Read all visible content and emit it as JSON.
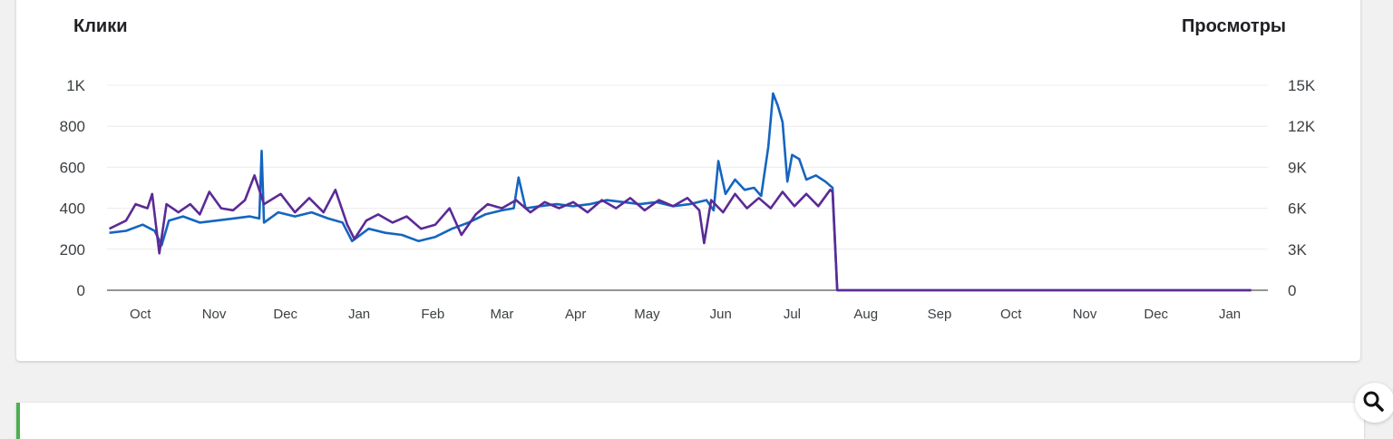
{
  "colors": {
    "clicks": "#1565c0",
    "views": "#5b2a96",
    "grid": "#ececec",
    "axis": "#555555"
  },
  "icons": {
    "search": "search-icon"
  },
  "chart_data": {
    "type": "line",
    "left_axis_title": "Клики",
    "right_axis_title": "Просмотры",
    "ylim_left": [
      0,
      1000
    ],
    "ylim_right": [
      0,
      15000
    ],
    "yticks_left": [
      "0",
      "200",
      "400",
      "600",
      "800",
      "1K"
    ],
    "yticks_right": [
      "0",
      "3K",
      "6K",
      "9K",
      "12K",
      "15K"
    ],
    "x_range": [
      "2023-09-20",
      "2025-01-20"
    ],
    "month_ticks": [
      {
        "label": "Oct",
        "date": "2023-10-04"
      },
      {
        "label": "Nov",
        "date": "2023-11-04"
      },
      {
        "label": "Dec",
        "date": "2023-12-04"
      },
      {
        "label": "Jan",
        "date": "2024-01-04"
      },
      {
        "label": "Feb",
        "date": "2024-02-04"
      },
      {
        "label": "Mar",
        "date": "2024-03-04"
      },
      {
        "label": "Apr",
        "date": "2024-04-04"
      },
      {
        "label": "May",
        "date": "2024-05-04"
      },
      {
        "label": "Jun",
        "date": "2024-06-04"
      },
      {
        "label": "Jul",
        "date": "2024-07-04"
      },
      {
        "label": "Aug",
        "date": "2024-08-04"
      },
      {
        "label": "Sep",
        "date": "2024-09-04"
      },
      {
        "label": "Oct",
        "date": "2024-10-04"
      },
      {
        "label": "Nov",
        "date": "2024-11-04"
      },
      {
        "label": "Dec",
        "date": "2024-12-04"
      },
      {
        "label": "Jan",
        "date": "2025-01-04"
      }
    ],
    "series": [
      {
        "axis": "left",
        "points": [
          [
            "2023-09-21",
            280
          ],
          [
            "2023-09-28",
            290
          ],
          [
            "2023-10-05",
            320
          ],
          [
            "2023-10-10",
            290
          ],
          [
            "2023-10-13",
            220
          ],
          [
            "2023-10-16",
            340
          ],
          [
            "2023-10-22",
            360
          ],
          [
            "2023-10-29",
            330
          ],
          [
            "2023-11-05",
            340
          ],
          [
            "2023-11-12",
            350
          ],
          [
            "2023-11-19",
            360
          ],
          [
            "2023-11-23",
            350
          ],
          [
            "2023-11-24",
            680
          ],
          [
            "2023-11-25",
            330
          ],
          [
            "2023-12-01",
            380
          ],
          [
            "2023-12-08",
            360
          ],
          [
            "2023-12-15",
            380
          ],
          [
            "2023-12-22",
            350
          ],
          [
            "2023-12-28",
            330
          ],
          [
            "2024-01-01",
            240
          ],
          [
            "2024-01-08",
            300
          ],
          [
            "2024-01-15",
            280
          ],
          [
            "2024-01-22",
            270
          ],
          [
            "2024-01-29",
            240
          ],
          [
            "2024-02-05",
            260
          ],
          [
            "2024-02-12",
            300
          ],
          [
            "2024-02-19",
            330
          ],
          [
            "2024-02-26",
            370
          ],
          [
            "2024-03-04",
            390
          ],
          [
            "2024-03-09",
            400
          ],
          [
            "2024-03-11",
            550
          ],
          [
            "2024-03-14",
            400
          ],
          [
            "2024-03-20",
            410
          ],
          [
            "2024-03-27",
            420
          ],
          [
            "2024-04-03",
            410
          ],
          [
            "2024-04-10",
            420
          ],
          [
            "2024-04-17",
            440
          ],
          [
            "2024-04-24",
            430
          ],
          [
            "2024-05-01",
            420
          ],
          [
            "2024-05-08",
            430
          ],
          [
            "2024-05-15",
            410
          ],
          [
            "2024-05-22",
            420
          ],
          [
            "2024-05-29",
            440
          ],
          [
            "2024-06-01",
            390
          ],
          [
            "2024-06-03",
            630
          ],
          [
            "2024-06-06",
            470
          ],
          [
            "2024-06-10",
            540
          ],
          [
            "2024-06-14",
            490
          ],
          [
            "2024-06-18",
            500
          ],
          [
            "2024-06-21",
            460
          ],
          [
            "2024-06-24",
            700
          ],
          [
            "2024-06-26",
            960
          ],
          [
            "2024-06-28",
            900
          ],
          [
            "2024-06-30",
            820
          ],
          [
            "2024-07-02",
            530
          ],
          [
            "2024-07-04",
            660
          ],
          [
            "2024-07-07",
            640
          ],
          [
            "2024-07-10",
            540
          ],
          [
            "2024-07-14",
            560
          ],
          [
            "2024-07-18",
            530
          ],
          [
            "2024-07-21",
            500
          ],
          [
            "2024-07-23",
            0
          ],
          [
            "2025-01-13",
            0
          ]
        ]
      },
      {
        "axis": "left",
        "points": [
          [
            "2023-09-21",
            300
          ],
          [
            "2023-09-28",
            340
          ],
          [
            "2023-10-02",
            420
          ],
          [
            "2023-10-07",
            400
          ],
          [
            "2023-10-09",
            470
          ],
          [
            "2023-10-12",
            180
          ],
          [
            "2023-10-15",
            420
          ],
          [
            "2023-10-20",
            380
          ],
          [
            "2023-10-25",
            420
          ],
          [
            "2023-10-29",
            370
          ],
          [
            "2023-11-02",
            480
          ],
          [
            "2023-11-07",
            400
          ],
          [
            "2023-11-12",
            390
          ],
          [
            "2023-11-17",
            440
          ],
          [
            "2023-11-21",
            560
          ],
          [
            "2023-11-25",
            420
          ],
          [
            "2023-12-02",
            470
          ],
          [
            "2023-12-08",
            380
          ],
          [
            "2023-12-14",
            450
          ],
          [
            "2023-12-20",
            380
          ],
          [
            "2023-12-25",
            490
          ],
          [
            "2023-12-30",
            320
          ],
          [
            "2024-01-02",
            250
          ],
          [
            "2024-01-07",
            340
          ],
          [
            "2024-01-12",
            370
          ],
          [
            "2024-01-18",
            330
          ],
          [
            "2024-01-24",
            360
          ],
          [
            "2024-01-30",
            300
          ],
          [
            "2024-02-05",
            320
          ],
          [
            "2024-02-11",
            400
          ],
          [
            "2024-02-16",
            270
          ],
          [
            "2024-02-22",
            370
          ],
          [
            "2024-02-27",
            420
          ],
          [
            "2024-03-04",
            400
          ],
          [
            "2024-03-10",
            440
          ],
          [
            "2024-03-16",
            380
          ],
          [
            "2024-03-22",
            430
          ],
          [
            "2024-03-28",
            400
          ],
          [
            "2024-04-03",
            430
          ],
          [
            "2024-04-09",
            380
          ],
          [
            "2024-04-15",
            440
          ],
          [
            "2024-04-21",
            400
          ],
          [
            "2024-04-27",
            450
          ],
          [
            "2024-05-03",
            390
          ],
          [
            "2024-05-09",
            440
          ],
          [
            "2024-05-15",
            410
          ],
          [
            "2024-05-21",
            450
          ],
          [
            "2024-05-26",
            390
          ],
          [
            "2024-05-28",
            230
          ],
          [
            "2024-05-31",
            440
          ],
          [
            "2024-06-05",
            380
          ],
          [
            "2024-06-10",
            470
          ],
          [
            "2024-06-15",
            400
          ],
          [
            "2024-06-20",
            450
          ],
          [
            "2024-06-25",
            400
          ],
          [
            "2024-06-30",
            480
          ],
          [
            "2024-07-05",
            410
          ],
          [
            "2024-07-10",
            470
          ],
          [
            "2024-07-15",
            410
          ],
          [
            "2024-07-20",
            490
          ],
          [
            "2024-07-21",
            480
          ],
          [
            "2024-07-23",
            0
          ],
          [
            "2025-01-13",
            0
          ]
        ]
      }
    ]
  }
}
